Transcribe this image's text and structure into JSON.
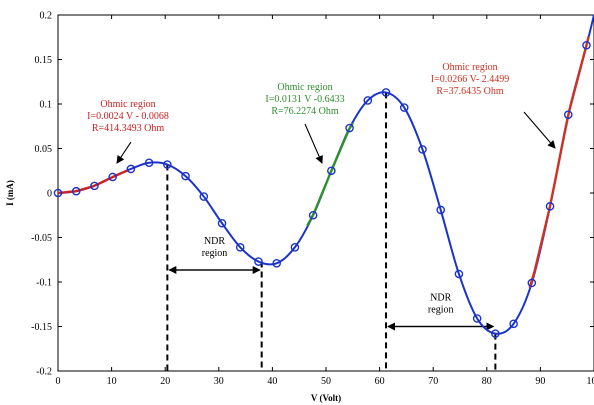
{
  "chart_data": {
    "type": "line",
    "title": "",
    "xlabel": "V (Volt)",
    "ylabel": "I (mA)",
    "xlim": [
      0,
      100
    ],
    "ylim": [
      -0.2,
      0.2
    ],
    "xticks": [
      "0",
      "10",
      "20",
      "30",
      "40",
      "50",
      "60",
      "70",
      "80",
      "90",
      "100"
    ],
    "yticks": [
      "-0.2",
      "-0.15",
      "-0.1",
      "-0.05",
      "0",
      "0.05",
      "0.1",
      "0.15",
      "0.2"
    ],
    "grid": false,
    "colors": {
      "curve": "#1a33cc",
      "marker": "#1a33cc",
      "ohmic_left": "#cc2222",
      "ohmic_middle": "#2f8f2f",
      "ohmic_right": "#cc3322"
    },
    "markers": [
      {
        "x": 0,
        "y": 0.0
      },
      {
        "x": 3.4,
        "y": 0.002
      },
      {
        "x": 6.8,
        "y": 0.008
      },
      {
        "x": 10.2,
        "y": 0.018
      },
      {
        "x": 13.6,
        "y": 0.027
      },
      {
        "x": 17.0,
        "y": 0.034
      },
      {
        "x": 20.4,
        "y": 0.032
      },
      {
        "x": 23.8,
        "y": 0.019
      },
      {
        "x": 27.2,
        "y": -0.004
      },
      {
        "x": 30.6,
        "y": -0.034
      },
      {
        "x": 34.0,
        "y": -0.061
      },
      {
        "x": 37.4,
        "y": -0.077
      },
      {
        "x": 40.8,
        "y": -0.079
      },
      {
        "x": 44.2,
        "y": -0.061
      },
      {
        "x": 47.6,
        "y": -0.025
      },
      {
        "x": 51.0,
        "y": 0.025
      },
      {
        "x": 54.4,
        "y": 0.073
      },
      {
        "x": 57.8,
        "y": 0.104
      },
      {
        "x": 61.2,
        "y": 0.113
      },
      {
        "x": 64.6,
        "y": 0.096
      },
      {
        "x": 68.0,
        "y": 0.049
      },
      {
        "x": 71.4,
        "y": -0.019
      },
      {
        "x": 74.8,
        "y": -0.091
      },
      {
        "x": 78.2,
        "y": -0.141
      },
      {
        "x": 81.6,
        "y": -0.158
      },
      {
        "x": 85.0,
        "y": -0.147
      },
      {
        "x": 88.4,
        "y": -0.101
      },
      {
        "x": 91.8,
        "y": -0.015
      },
      {
        "x": 95.2,
        "y": 0.088
      },
      {
        "x": 98.6,
        "y": 0.166
      }
    ],
    "curve_end": {
      "x": 100,
      "y": 0.2
    },
    "ohmic_fits": [
      {
        "label_lines": [
          "Ohmic region",
          "I=0.0024 V - 0.0068",
          "R=414.3493 Ohm"
        ],
        "x_range": [
          0,
          13
        ],
        "color": "ohmic_left"
      },
      {
        "label_lines": [
          "Ohmic region",
          "I=0.0131 V -0.6433",
          "R=76.2274 Ohm"
        ],
        "x_range": [
          46.5,
          55
        ],
        "color": "ohmic_middle"
      },
      {
        "label_lines": [
          "Ohmic region",
          "I=0.0266 V- 2.4499",
          "R=37.6435 Ohm"
        ],
        "x_range": [
          88,
          99
        ],
        "color": "ohmic_right"
      }
    ],
    "ndr_regions": [
      {
        "label_lines": [
          "NDR",
          "region"
        ],
        "x_start": 20.4,
        "x_end": 38.0,
        "y_top_start": 0.032,
        "y_top_end": -0.077,
        "arrow_y": -0.0775
      },
      {
        "label_lines": [
          "NDR",
          "region"
        ],
        "x_start": 61.2,
        "x_end": 81.6,
        "y_top_start": 0.113,
        "y_top_end": -0.158,
        "arrow_y": -0.141
      }
    ]
  }
}
